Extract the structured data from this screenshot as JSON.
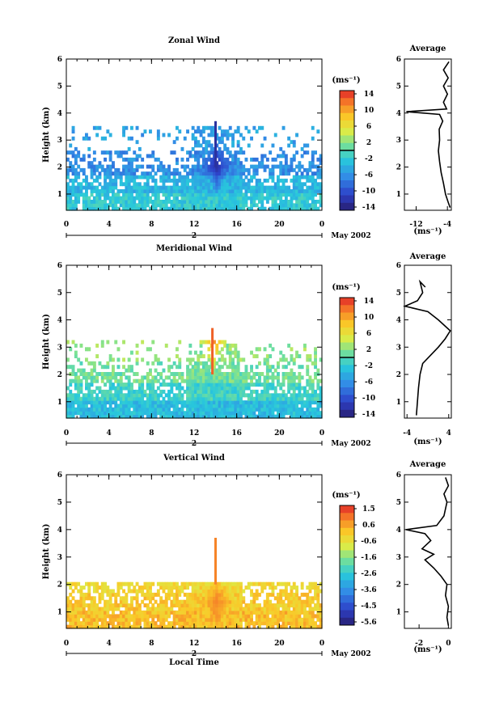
{
  "chart_data": [
    {
      "type": "heatmap",
      "title": "Zonal Wind",
      "ylabel": "Height (km)",
      "unit_label": "(ms⁻¹)",
      "date_label": "May 2002",
      "day_label": "2",
      "x_ticks": [
        "0",
        "4",
        "8",
        "12",
        "16",
        "20",
        "0"
      ],
      "y_ticks": [
        "1",
        "2",
        "3",
        "4",
        "5",
        "6"
      ],
      "xlim": [
        0,
        24
      ],
      "ylim": [
        0.4,
        6
      ],
      "colorbar": {
        "min": -14,
        "max": 14,
        "marked_value": 0,
        "tick_labels": [
          "14",
          "10",
          "6",
          "2",
          "-2",
          "-6",
          "-10",
          "-14"
        ]
      },
      "layers": [
        {
          "ymax": 1.0,
          "mean": -2.0
        },
        {
          "ymax": 1.6,
          "mean": -3.5
        },
        {
          "ymax": 2.5,
          "mean": -6.0
        },
        {
          "ymax": 3.5,
          "mean": -5.0
        }
      ],
      "core": {
        "t": 14,
        "h": 2.0,
        "value": -12
      },
      "profile": {
        "title": "Average",
        "xlabel": "(ms⁻¹)",
        "x_ticks": [
          "-12",
          "-4"
        ],
        "xlim": [
          -15,
          -3
        ],
        "points": [
          [
            -3.3,
            0.5
          ],
          [
            -3.8,
            0.7
          ],
          [
            -4.5,
            1.0
          ],
          [
            -5.0,
            1.4
          ],
          [
            -5.6,
            1.8
          ],
          [
            -6.0,
            2.2
          ],
          [
            -6.3,
            2.6
          ],
          [
            -6.0,
            3.0
          ],
          [
            -6.1,
            3.4
          ],
          [
            -5.2,
            3.7
          ],
          [
            -6.0,
            3.95
          ],
          [
            -14.5,
            4.05
          ],
          [
            -4.2,
            4.15
          ],
          [
            -5.0,
            4.4
          ],
          [
            -4.0,
            4.7
          ],
          [
            -5.0,
            5.0
          ],
          [
            -3.8,
            5.3
          ],
          [
            -5.0,
            5.6
          ],
          [
            -3.6,
            5.9
          ]
        ]
      }
    },
    {
      "type": "heatmap",
      "title": "Meridional Wind",
      "ylabel": "Height (km)",
      "unit_label": "(ms⁻¹)",
      "date_label": "May 2002",
      "day_label": "2",
      "x_ticks": [
        "0",
        "4",
        "8",
        "12",
        "16",
        "20",
        "0"
      ],
      "y_ticks": [
        "1",
        "2",
        "3",
        "4",
        "5",
        "6"
      ],
      "xlim": [
        0,
        24
      ],
      "ylim": [
        0.4,
        6
      ],
      "colorbar": {
        "min": -14,
        "max": 14,
        "marked_value": 0,
        "tick_labels": [
          "14",
          "10",
          "6",
          "2",
          "-2",
          "-6",
          "-10",
          "-14"
        ]
      },
      "layers": [
        {
          "ymax": 1.0,
          "mean": -3.0
        },
        {
          "ymax": 1.6,
          "mean": -1.0
        },
        {
          "ymax": 2.4,
          "mean": 1.0
        },
        {
          "ymax": 3.2,
          "mean": 2.0
        }
      ],
      "core": {
        "t": 13.7,
        "h": 3.3,
        "value": 12
      },
      "profile": {
        "title": "Average",
        "xlabel": "(ms⁻¹)",
        "x_ticks": [
          "-4",
          "4"
        ],
        "xlim": [
          -4.5,
          4.5
        ],
        "points": [
          [
            -2.2,
            0.5
          ],
          [
            -2.0,
            1.0
          ],
          [
            -1.8,
            1.5
          ],
          [
            -1.5,
            2.0
          ],
          [
            -1.0,
            2.4
          ],
          [
            0.5,
            2.7
          ],
          [
            2.0,
            3.0
          ],
          [
            3.3,
            3.3
          ],
          [
            4.3,
            3.6
          ],
          [
            2.0,
            4.0
          ],
          [
            0.0,
            4.3
          ],
          [
            -4.4,
            4.5
          ],
          [
            -2.0,
            4.7
          ],
          [
            -1.0,
            5.0
          ],
          [
            -1.5,
            5.4
          ],
          [
            -0.5,
            5.2
          ]
        ]
      }
    },
    {
      "type": "heatmap",
      "title": "Vertical Wind",
      "ylabel": "Height (km)",
      "xlabel": "Local Time",
      "unit_label": "(ms⁻¹)",
      "date_label": "May 2002",
      "day_label": "2",
      "x_ticks": [
        "0",
        "4",
        "8",
        "12",
        "16",
        "20",
        "0"
      ],
      "y_ticks": [
        "1",
        "2",
        "3",
        "4",
        "5",
        "6"
      ],
      "xlim": [
        0,
        24
      ],
      "ylim": [
        0.4,
        6
      ],
      "colorbar": {
        "min": -5.8,
        "max": 1.8,
        "marked_value": null,
        "tick_labels": [
          "1.5",
          "0.6",
          "-0.6",
          "-1.6",
          "-2.6",
          "-3.6",
          "-4.5",
          "-5.6"
        ]
      },
      "layers": [
        {
          "ymax": 1.0,
          "mean": 0.2
        },
        {
          "ymax": 1.6,
          "mean": 0.0
        },
        {
          "ymax": 2.0,
          "mean": -0.2
        }
      ],
      "core": {
        "t": 14,
        "h": 1.3,
        "value": 0.9
      },
      "profile": {
        "title": "Average",
        "xlabel": "(ms⁻¹)",
        "x_ticks": [
          "-2",
          "0"
        ],
        "xlim": [
          -3,
          0.2
        ],
        "points": [
          [
            0.0,
            0.5
          ],
          [
            -0.1,
            0.8
          ],
          [
            0.0,
            1.2
          ],
          [
            -0.2,
            1.6
          ],
          [
            -0.1,
            2.0
          ],
          [
            -0.5,
            2.3
          ],
          [
            -1.0,
            2.6
          ],
          [
            -1.6,
            2.9
          ],
          [
            -1.0,
            3.1
          ],
          [
            -1.8,
            3.3
          ],
          [
            -1.2,
            3.6
          ],
          [
            -1.6,
            3.85
          ],
          [
            -2.9,
            4.0
          ],
          [
            -0.8,
            4.15
          ],
          [
            -0.3,
            4.5
          ],
          [
            -0.1,
            5.0
          ],
          [
            -0.3,
            5.3
          ],
          [
            0.0,
            5.6
          ],
          [
            -0.2,
            5.9
          ]
        ]
      }
    }
  ]
}
